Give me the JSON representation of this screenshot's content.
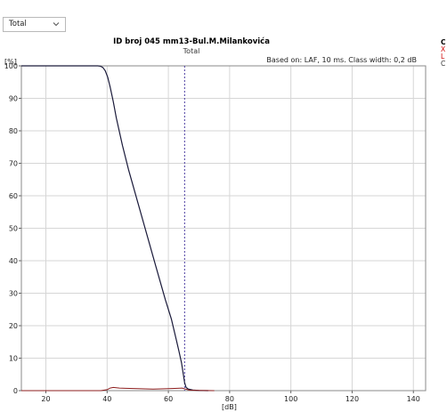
{
  "toolbar": {
    "selector_value": "Total"
  },
  "side_panel": {
    "lines": [
      "C",
      "X",
      "L",
      "C"
    ]
  },
  "chart_data": {
    "type": "line",
    "title": "ID broj 045 mm13-Bul.M.Milankovića",
    "subtitle": "Total",
    "annotation": "Based on: LAF, 10 ms. Class width: 0,2 dB",
    "xlabel": "[dB]",
    "ylabel": "[%]",
    "xlim": [
      12,
      144
    ],
    "ylim": [
      0,
      100
    ],
    "x_ticks": [
      20,
      40,
      60,
      80,
      100,
      120,
      140
    ],
    "y_ticks": [
      0,
      10,
      20,
      30,
      40,
      50,
      60,
      70,
      80,
      90,
      100
    ],
    "grid": true,
    "reference_line_x": 65.3,
    "series": [
      {
        "color": "#1a1a3a",
        "x": [
          12,
          37,
          37.8,
          38.6,
          39.4,
          40.2,
          41,
          42,
          43,
          45,
          47,
          50,
          53,
          56,
          59,
          61,
          62.5,
          63.5,
          64.3,
          64.9,
          65.3,
          65.8,
          66.5,
          68,
          70,
          73
        ],
        "values": [
          100,
          100,
          99.9,
          99.5,
          98.5,
          96.5,
          93.5,
          89,
          84,
          75.5,
          68,
          58,
          48,
          38,
          28,
          22,
          16,
          12,
          8.5,
          5,
          2.5,
          1,
          0.5,
          0.2,
          0.05,
          0
        ]
      },
      {
        "color": "#8c1c1c",
        "x": [
          12,
          38,
          40,
          41,
          42,
          43,
          44,
          46,
          50,
          55,
          60,
          63,
          64.5,
          65.5,
          67,
          70,
          75
        ],
        "values": [
          0,
          0,
          0.3,
          0.8,
          1.0,
          0.9,
          0.8,
          0.7,
          0.6,
          0.5,
          0.6,
          0.7,
          0.8,
          0.5,
          0.15,
          0.05,
          0
        ]
      }
    ]
  }
}
